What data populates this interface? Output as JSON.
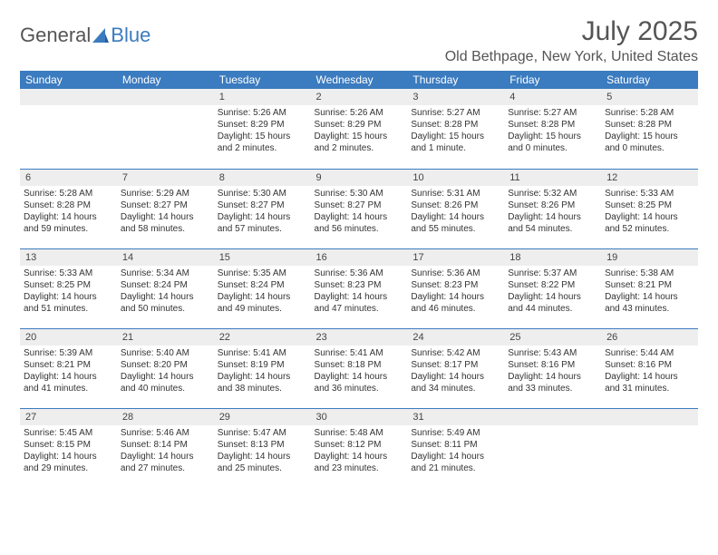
{
  "logo": {
    "text1": "General",
    "text2": "Blue"
  },
  "title": "July 2025",
  "location": "Old Bethpage, New York, United States",
  "colors": {
    "header_bg": "#3b7bbf",
    "header_text": "#ffffff",
    "daynum_bg": "#eeeeee",
    "border": "#3b7bbf",
    "text": "#333333"
  },
  "weekdays": [
    "Sunday",
    "Monday",
    "Tuesday",
    "Wednesday",
    "Thursday",
    "Friday",
    "Saturday"
  ],
  "weeks": [
    [
      null,
      null,
      {
        "n": "1",
        "sr": "Sunrise: 5:26 AM",
        "ss": "Sunset: 8:29 PM",
        "dl": "Daylight: 15 hours and 2 minutes."
      },
      {
        "n": "2",
        "sr": "Sunrise: 5:26 AM",
        "ss": "Sunset: 8:29 PM",
        "dl": "Daylight: 15 hours and 2 minutes."
      },
      {
        "n": "3",
        "sr": "Sunrise: 5:27 AM",
        "ss": "Sunset: 8:28 PM",
        "dl": "Daylight: 15 hours and 1 minute."
      },
      {
        "n": "4",
        "sr": "Sunrise: 5:27 AM",
        "ss": "Sunset: 8:28 PM",
        "dl": "Daylight: 15 hours and 0 minutes."
      },
      {
        "n": "5",
        "sr": "Sunrise: 5:28 AM",
        "ss": "Sunset: 8:28 PM",
        "dl": "Daylight: 15 hours and 0 minutes."
      }
    ],
    [
      {
        "n": "6",
        "sr": "Sunrise: 5:28 AM",
        "ss": "Sunset: 8:28 PM",
        "dl": "Daylight: 14 hours and 59 minutes."
      },
      {
        "n": "7",
        "sr": "Sunrise: 5:29 AM",
        "ss": "Sunset: 8:27 PM",
        "dl": "Daylight: 14 hours and 58 minutes."
      },
      {
        "n": "8",
        "sr": "Sunrise: 5:30 AM",
        "ss": "Sunset: 8:27 PM",
        "dl": "Daylight: 14 hours and 57 minutes."
      },
      {
        "n": "9",
        "sr": "Sunrise: 5:30 AM",
        "ss": "Sunset: 8:27 PM",
        "dl": "Daylight: 14 hours and 56 minutes."
      },
      {
        "n": "10",
        "sr": "Sunrise: 5:31 AM",
        "ss": "Sunset: 8:26 PM",
        "dl": "Daylight: 14 hours and 55 minutes."
      },
      {
        "n": "11",
        "sr": "Sunrise: 5:32 AM",
        "ss": "Sunset: 8:26 PM",
        "dl": "Daylight: 14 hours and 54 minutes."
      },
      {
        "n": "12",
        "sr": "Sunrise: 5:33 AM",
        "ss": "Sunset: 8:25 PM",
        "dl": "Daylight: 14 hours and 52 minutes."
      }
    ],
    [
      {
        "n": "13",
        "sr": "Sunrise: 5:33 AM",
        "ss": "Sunset: 8:25 PM",
        "dl": "Daylight: 14 hours and 51 minutes."
      },
      {
        "n": "14",
        "sr": "Sunrise: 5:34 AM",
        "ss": "Sunset: 8:24 PM",
        "dl": "Daylight: 14 hours and 50 minutes."
      },
      {
        "n": "15",
        "sr": "Sunrise: 5:35 AM",
        "ss": "Sunset: 8:24 PM",
        "dl": "Daylight: 14 hours and 49 minutes."
      },
      {
        "n": "16",
        "sr": "Sunrise: 5:36 AM",
        "ss": "Sunset: 8:23 PM",
        "dl": "Daylight: 14 hours and 47 minutes."
      },
      {
        "n": "17",
        "sr": "Sunrise: 5:36 AM",
        "ss": "Sunset: 8:23 PM",
        "dl": "Daylight: 14 hours and 46 minutes."
      },
      {
        "n": "18",
        "sr": "Sunrise: 5:37 AM",
        "ss": "Sunset: 8:22 PM",
        "dl": "Daylight: 14 hours and 44 minutes."
      },
      {
        "n": "19",
        "sr": "Sunrise: 5:38 AM",
        "ss": "Sunset: 8:21 PM",
        "dl": "Daylight: 14 hours and 43 minutes."
      }
    ],
    [
      {
        "n": "20",
        "sr": "Sunrise: 5:39 AM",
        "ss": "Sunset: 8:21 PM",
        "dl": "Daylight: 14 hours and 41 minutes."
      },
      {
        "n": "21",
        "sr": "Sunrise: 5:40 AM",
        "ss": "Sunset: 8:20 PM",
        "dl": "Daylight: 14 hours and 40 minutes."
      },
      {
        "n": "22",
        "sr": "Sunrise: 5:41 AM",
        "ss": "Sunset: 8:19 PM",
        "dl": "Daylight: 14 hours and 38 minutes."
      },
      {
        "n": "23",
        "sr": "Sunrise: 5:41 AM",
        "ss": "Sunset: 8:18 PM",
        "dl": "Daylight: 14 hours and 36 minutes."
      },
      {
        "n": "24",
        "sr": "Sunrise: 5:42 AM",
        "ss": "Sunset: 8:17 PM",
        "dl": "Daylight: 14 hours and 34 minutes."
      },
      {
        "n": "25",
        "sr": "Sunrise: 5:43 AM",
        "ss": "Sunset: 8:16 PM",
        "dl": "Daylight: 14 hours and 33 minutes."
      },
      {
        "n": "26",
        "sr": "Sunrise: 5:44 AM",
        "ss": "Sunset: 8:16 PM",
        "dl": "Daylight: 14 hours and 31 minutes."
      }
    ],
    [
      {
        "n": "27",
        "sr": "Sunrise: 5:45 AM",
        "ss": "Sunset: 8:15 PM",
        "dl": "Daylight: 14 hours and 29 minutes."
      },
      {
        "n": "28",
        "sr": "Sunrise: 5:46 AM",
        "ss": "Sunset: 8:14 PM",
        "dl": "Daylight: 14 hours and 27 minutes."
      },
      {
        "n": "29",
        "sr": "Sunrise: 5:47 AM",
        "ss": "Sunset: 8:13 PM",
        "dl": "Daylight: 14 hours and 25 minutes."
      },
      {
        "n": "30",
        "sr": "Sunrise: 5:48 AM",
        "ss": "Sunset: 8:12 PM",
        "dl": "Daylight: 14 hours and 23 minutes."
      },
      {
        "n": "31",
        "sr": "Sunrise: 5:49 AM",
        "ss": "Sunset: 8:11 PM",
        "dl": "Daylight: 14 hours and 21 minutes."
      },
      null,
      null
    ]
  ]
}
